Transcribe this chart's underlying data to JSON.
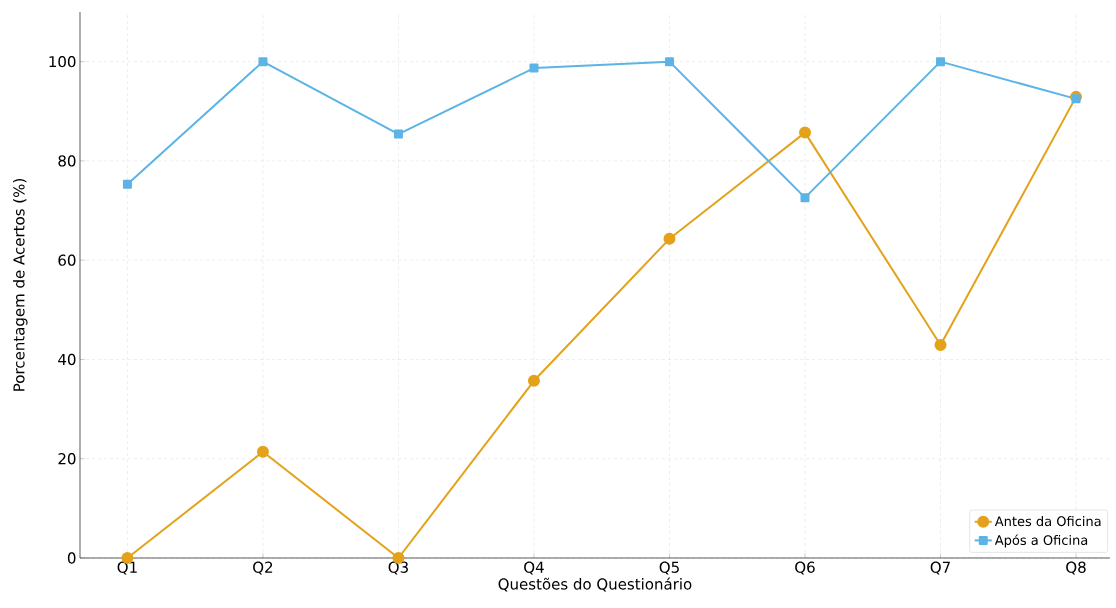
{
  "chart_data": {
    "type": "line",
    "xlabel": "Questões do Questionário",
    "ylabel": "Porcentagem de Acertos (%)",
    "categories": [
      "Q1",
      "Q2",
      "Q3",
      "Q4",
      "Q5",
      "Q6",
      "Q7",
      "Q8"
    ],
    "series": [
      {
        "name": "Antes da Oficina",
        "color": "#e3a21a",
        "marker": "circle",
        "values": [
          0,
          21.4,
          0,
          35.7,
          64.3,
          85.7,
          42.9,
          92.9
        ]
      },
      {
        "name": "Após a Oficina",
        "color": "#5bb4e5",
        "marker": "square",
        "values": [
          75.3,
          100,
          85.4,
          98.7,
          100,
          72.6,
          100,
          92.5
        ]
      }
    ],
    "ylim": [
      0,
      110
    ],
    "yticks": [
      0,
      20,
      40,
      60,
      80,
      100
    ],
    "grid": true,
    "legend": "bottom right",
    "line_style": "solid"
  }
}
